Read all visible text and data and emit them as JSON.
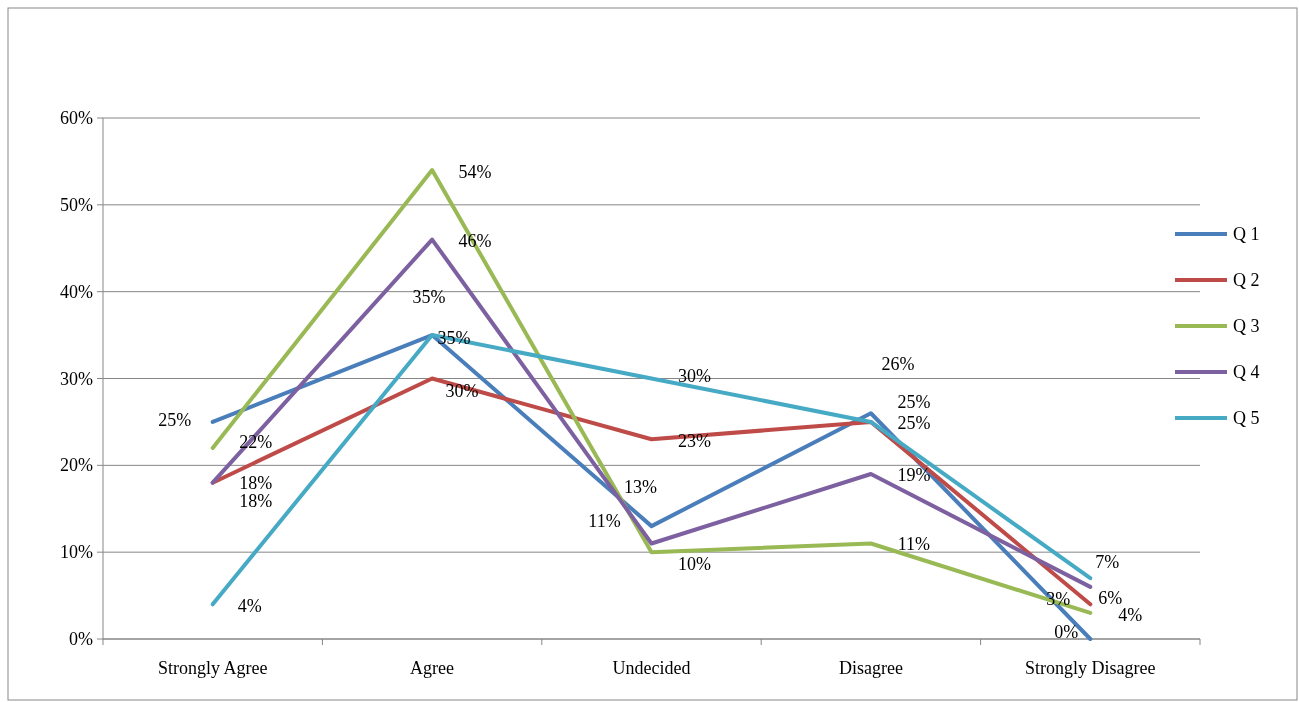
{
  "chart_data": {
    "type": "line",
    "categories": [
      "Strongly Agree",
      "Agree",
      "Undecided",
      "Disagree",
      "Strongly Disagree"
    ],
    "series": [
      {
        "name": "Q 1",
        "color": "#4a7ebb",
        "values": [
          25,
          35,
          13,
          26,
          0
        ],
        "value_labels": [
          "25%",
          "35%",
          "13%",
          "26%",
          "0%"
        ]
      },
      {
        "name": "Q 2",
        "color": "#be4b48",
        "values": [
          18,
          30,
          23,
          25,
          4
        ],
        "value_labels": [
          "18%",
          "30%",
          "23%",
          "25%",
          "4%"
        ]
      },
      {
        "name": "Q 3",
        "color": "#98b954",
        "values": [
          22,
          54,
          10,
          11,
          3
        ],
        "value_labels": [
          "22%",
          "54%",
          "10%",
          "11%",
          "3%"
        ]
      },
      {
        "name": "Q 4",
        "color": "#7d60a0",
        "values": [
          18,
          46,
          11,
          19,
          6
        ],
        "value_labels": [
          "18%",
          "46%",
          "11%",
          "19%",
          "6%"
        ]
      },
      {
        "name": "Q 5",
        "color": "#46aac5",
        "values": [
          4,
          35,
          30,
          25,
          7
        ],
        "value_labels": [
          "4%",
          "35%",
          "30%",
          "25%",
          "7%"
        ]
      }
    ],
    "ylim": [
      0,
      60
    ],
    "yticks": [
      {
        "value": 0,
        "label": "0%"
      },
      {
        "value": 10,
        "label": "10%"
      },
      {
        "value": 20,
        "label": "20%"
      },
      {
        "value": 30,
        "label": "30%"
      },
      {
        "value": 40,
        "label": "40%"
      },
      {
        "value": 50,
        "label": "50%"
      },
      {
        "value": 60,
        "label": "60%"
      }
    ],
    "grid": "y",
    "legend": "right",
    "marker": "none",
    "line_style": "solid"
  }
}
